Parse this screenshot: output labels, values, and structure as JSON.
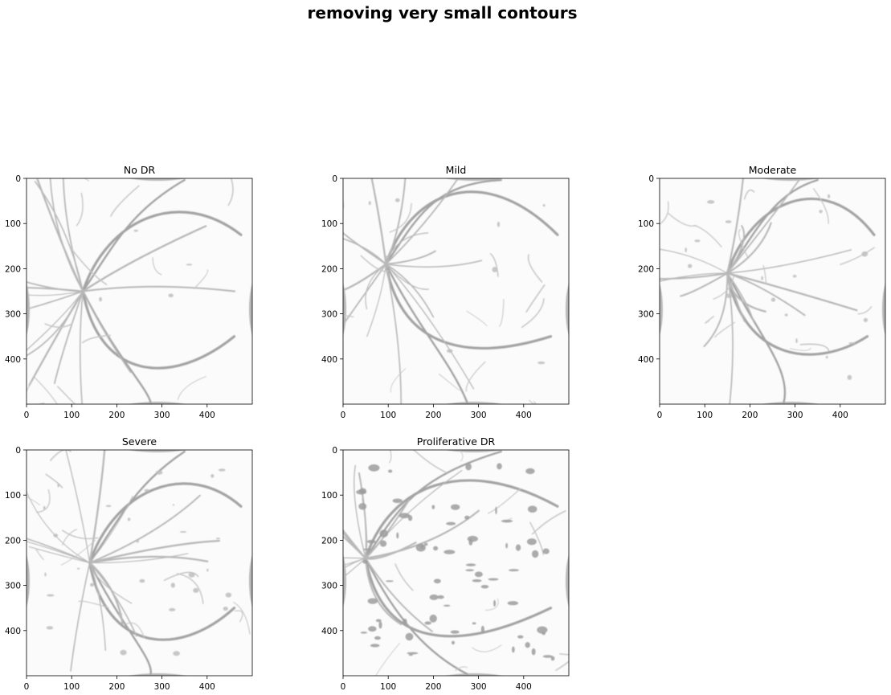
{
  "figure": {
    "title": "removing very small contours"
  },
  "chart_data": [
    {
      "type": "image",
      "title": "No DR",
      "xlim": [
        0,
        500
      ],
      "ylim": [
        500,
        0
      ],
      "xticks": [
        "0",
        "100",
        "200",
        "300",
        "400"
      ],
      "yticks": [
        "0",
        "100",
        "200",
        "300",
        "400"
      ],
      "colormap": "grayscale, light background",
      "content": "retinal fundus vessel image"
    },
    {
      "type": "image",
      "title": "Mild",
      "xlim": [
        0,
        500
      ],
      "ylim": [
        500,
        0
      ],
      "xticks": [
        "0",
        "100",
        "200",
        "300",
        "400"
      ],
      "yticks": [
        "0",
        "100",
        "200",
        "300",
        "400"
      ],
      "colormap": "grayscale, light background",
      "content": "retinal fundus vessel image"
    },
    {
      "type": "image",
      "title": "Moderate",
      "xlim": [
        0,
        500
      ],
      "ylim": [
        500,
        0
      ],
      "xticks": [
        "0",
        "100",
        "200",
        "300",
        "400"
      ],
      "yticks": [
        "0",
        "100",
        "200",
        "300",
        "400"
      ],
      "colormap": "grayscale, light background",
      "content": "retinal fundus vessel image"
    },
    {
      "type": "image",
      "title": "Severe",
      "xlim": [
        0,
        500
      ],
      "ylim": [
        500,
        0
      ],
      "xticks": [
        "0",
        "100",
        "200",
        "300",
        "400"
      ],
      "yticks": [
        "0",
        "100",
        "200",
        "300",
        "400"
      ],
      "colormap": "grayscale, light background",
      "content": "retinal fundus vessel image"
    },
    {
      "type": "image",
      "title": "Proliferative DR",
      "xlim": [
        0,
        500
      ],
      "ylim": [
        500,
        0
      ],
      "xticks": [
        "0",
        "100",
        "200",
        "300",
        "400"
      ],
      "yticks": [
        "0",
        "100",
        "200",
        "300",
        "400"
      ],
      "colormap": "grayscale, light background",
      "content": "retinal fundus vessel image"
    }
  ]
}
